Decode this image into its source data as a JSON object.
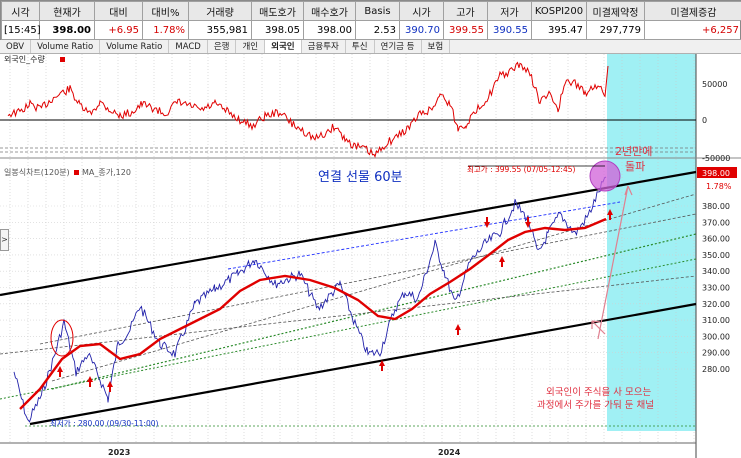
{
  "quote": {
    "headers": [
      "시각",
      "현재가",
      "대비",
      "대비%",
      "거래량",
      "매도호가",
      "매수호가",
      "Basis",
      "시가",
      "고가",
      "저가",
      "KOSPI200",
      "미결제약정",
      "미결제증감"
    ],
    "values": [
      "[15:45]",
      "398.00",
      "+6.95",
      "1.78%",
      "355,981",
      "398.05",
      "398.00",
      "2.53",
      "390.70",
      "399.55",
      "390.55",
      "395.47",
      "297,779",
      "+6,257"
    ]
  },
  "tabs": [
    "OBV",
    "Volume Ratio",
    "Volume Ratio",
    "MACD",
    "은행",
    "개인",
    "외국인",
    "금융투자",
    "투신",
    "연기금 등",
    "보험"
  ],
  "sidebar": {
    "arrow": ">"
  },
  "top_panel": {
    "label": "외국인_수량",
    "axis_labels": [
      "50000",
      "0",
      "-50000"
    ]
  },
  "main_panel": {
    "legend_prefix": "일봉식차트(120분)",
    "legend_ma": "MA_종가,120",
    "title": "연결 선물 60분",
    "high_label": "최고가 : 399.55 (07/05-12:45)",
    "low_label": "최저가 : 280.00 (09/30-11:00)",
    "price_tag": "398.00",
    "pct_tag": "1.78%",
    "annotation_break_1": "2년만에",
    "annotation_break_2": "돌파",
    "annotation_channel_1": "외국인이 주식을 사 모으는",
    "annotation_channel_2": "과정에서 주가를 가둬 둔 채널",
    "axis_labels": [
      "380.00",
      "370.00",
      "360.00",
      "350.00",
      "340.00",
      "330.00",
      "320.00",
      "310.00",
      "300.00",
      "290.00",
      "280.00"
    ],
    "x_labels": [
      "2023",
      "2024"
    ]
  },
  "colors": {
    "price": "#2222aa",
    "ma": "#e00000",
    "foreign": "#e00000",
    "highlight": "#a0f0f4",
    "channel": "#000000"
  }
}
